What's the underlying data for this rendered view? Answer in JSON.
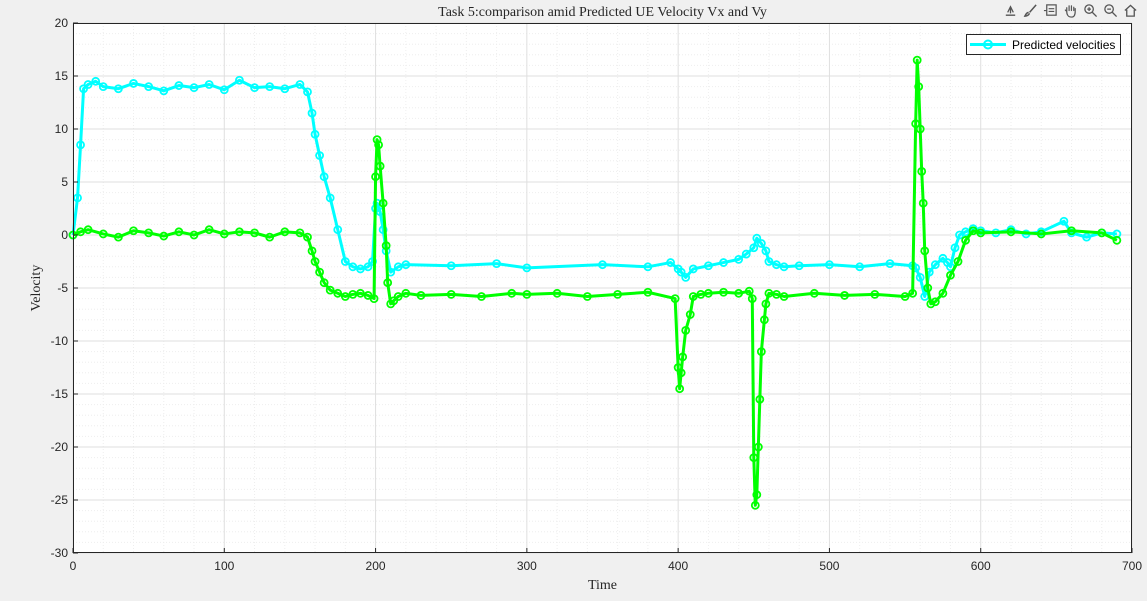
{
  "toolbar": {
    "icons": [
      "export-icon",
      "brush-icon",
      "datatip-icon",
      "pan-hand-icon",
      "zoom-in-icon",
      "zoom-out-icon",
      "home-icon"
    ]
  },
  "colors": {
    "background": "#f0f0f0",
    "axes_bg": "#ffffff",
    "series_cyan": "#00ffff",
    "series_green": "#00ff00",
    "grid_major": "#dfdfdf",
    "grid_minor": "#eeeeee"
  },
  "chart_data": {
    "type": "line",
    "title": "Task 5:comparison amid Predicted UE Velocity Vx and Vy",
    "xlabel": "Time",
    "ylabel": "Velocity",
    "xlim": [
      0,
      700
    ],
    "ylim": [
      -30,
      20
    ],
    "xticks": [
      0,
      100,
      200,
      300,
      400,
      500,
      600,
      700
    ],
    "yticks": [
      20,
      15,
      10,
      5,
      0,
      -5,
      -10,
      -15,
      -20,
      -25,
      -30
    ],
    "grid": "on",
    "minor_grid": "on",
    "legend_position": "top-right",
    "legend": [
      "Predicted velocities"
    ],
    "series": [
      {
        "name": "Predicted velocities",
        "color": "#00ffff",
        "marker": "circle",
        "x": [
          0,
          3,
          5,
          7,
          10,
          15,
          20,
          30,
          40,
          50,
          60,
          70,
          80,
          90,
          100,
          110,
          120,
          130,
          140,
          150,
          155,
          158,
          160,
          163,
          166,
          170,
          175,
          180,
          185,
          190,
          195,
          198,
          200,
          201,
          203,
          205,
          207,
          210,
          215,
          220,
          250,
          280,
          300,
          350,
          380,
          395,
          400,
          402,
          405,
          410,
          420,
          430,
          440,
          445,
          450,
          452,
          455,
          458,
          460,
          465,
          470,
          480,
          500,
          520,
          540,
          555,
          557,
          560,
          563,
          566,
          570,
          575,
          578,
          580,
          583,
          586,
          590,
          595,
          600,
          610,
          620,
          630,
          640,
          655,
          660,
          670,
          680,
          690
        ],
        "y": [
          0,
          3.5,
          8.5,
          13.8,
          14.2,
          14.5,
          14,
          13.8,
          14.3,
          14,
          13.6,
          14.1,
          13.9,
          14.2,
          13.7,
          14.6,
          13.9,
          14,
          13.8,
          14.2,
          13.5,
          11.5,
          9.5,
          7.5,
          5.5,
          3.5,
          0.5,
          -2.5,
          -3,
          -3.2,
          -3,
          -2.5,
          2.5,
          3,
          2.2,
          0.5,
          -1.5,
          -3.5,
          -3,
          -2.8,
          -2.9,
          -2.7,
          -3.1,
          -2.8,
          -3,
          -2.6,
          -3.2,
          -3.5,
          -4,
          -3.2,
          -2.9,
          -2.6,
          -2.3,
          -1.8,
          -1.2,
          -0.3,
          -0.8,
          -1.5,
          -2.5,
          -2.8,
          -3,
          -2.9,
          -2.8,
          -3,
          -2.7,
          -2.9,
          -3.1,
          -4,
          -5.8,
          -3.5,
          -2.8,
          -2.2,
          -2.6,
          -3,
          -1.2,
          0,
          0.3,
          0.6,
          0.4,
          0.2,
          0.5,
          0.1,
          0.3,
          1.3,
          0.2,
          -0.2,
          0.2,
          0.1
        ]
      },
      {
        "name": "",
        "color": "#00ff00",
        "marker": "circle",
        "x": [
          0,
          5,
          10,
          20,
          30,
          40,
          50,
          60,
          70,
          80,
          90,
          100,
          110,
          120,
          130,
          140,
          150,
          155,
          158,
          160,
          163,
          166,
          170,
          175,
          180,
          185,
          190,
          195,
          199,
          200,
          201,
          202,
          203,
          205,
          207,
          208,
          210,
          212,
          215,
          220,
          230,
          250,
          270,
          290,
          300,
          320,
          340,
          360,
          380,
          398,
          400,
          401,
          402,
          403,
          405,
          408,
          410,
          415,
          420,
          430,
          440,
          447,
          449,
          450,
          451,
          452,
          453,
          454,
          455,
          457,
          458,
          460,
          465,
          470,
          490,
          510,
          530,
          550,
          555,
          557,
          558,
          559,
          560,
          561,
          562,
          563,
          565,
          567,
          570,
          575,
          580,
          585,
          590,
          595,
          600,
          620,
          640,
          660,
          680,
          690
        ],
        "y": [
          0,
          0.3,
          0.5,
          0.1,
          -0.2,
          0.4,
          0.2,
          -0.1,
          0.3,
          0,
          0.5,
          0.1,
          0.3,
          0.2,
          -0.2,
          0.3,
          0.2,
          -0.2,
          -1.5,
          -2.5,
          -3.5,
          -4.5,
          -5.2,
          -5.5,
          -5.8,
          -5.6,
          -5.5,
          -5.7,
          -6,
          5.5,
          9,
          8.5,
          6.5,
          3,
          -1,
          -4.5,
          -6.5,
          -6.2,
          -5.8,
          -5.5,
          -5.7,
          -5.6,
          -5.8,
          -5.5,
          -5.6,
          -5.5,
          -5.8,
          -5.6,
          -5.4,
          -6,
          -12.5,
          -14.5,
          -13,
          -11.5,
          -9,
          -7.5,
          -5.8,
          -5.6,
          -5.5,
          -5.4,
          -5.5,
          -5.3,
          -6,
          -21,
          -25.5,
          -24.5,
          -20,
          -15.5,
          -11,
          -8,
          -6.5,
          -5.5,
          -5.6,
          -5.8,
          -5.5,
          -5.7,
          -5.6,
          -5.8,
          -5.5,
          10.5,
          16.5,
          14,
          10,
          6,
          3,
          -1.5,
          -5,
          -6.5,
          -6.3,
          -5.5,
          -3.8,
          -2.5,
          -0.5,
          0.4,
          0.2,
          0.3,
          0.1,
          0.4,
          0.2,
          -0.5
        ]
      }
    ]
  }
}
